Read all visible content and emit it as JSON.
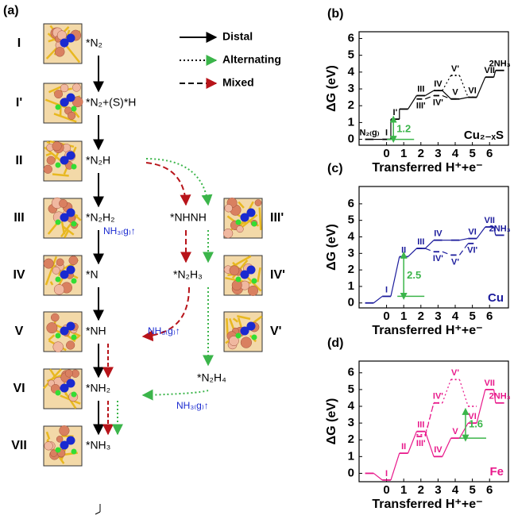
{
  "panel_a": {
    "label": "(a)",
    "legend": [
      {
        "name": "Distal",
        "style": "solid",
        "color": "#000000"
      },
      {
        "name": "Alternating",
        "style": "dotted",
        "color": "#3bb54a"
      },
      {
        "name": "Mixed",
        "style": "dashed",
        "color": "#b8141a"
      }
    ],
    "distal_steps": [
      {
        "state": "I",
        "species": "*N₂"
      },
      {
        "state": "I'",
        "species": "*N₂+(S)*H"
      },
      {
        "state": "II",
        "species": "*N₂H"
      },
      {
        "state": "III",
        "species": "*N₂H₂"
      },
      {
        "state": "IV",
        "species": "*N"
      },
      {
        "state": "V",
        "species": "*NH"
      },
      {
        "state": "VI",
        "species": "*NH₂"
      },
      {
        "state": "VII",
        "species": "*NH₃"
      }
    ],
    "branch_species": [
      "*NHNH",
      "*N₂H₃",
      "*N₂H₄"
    ],
    "side_states": [
      "III'",
      "IV'",
      "V'"
    ],
    "release": "NH₃₍g₎↑"
  },
  "chart_data": [
    {
      "type": "step",
      "panel": "(b)",
      "label": "Cu₂₋ₓS",
      "xlabel": "Transferred H⁺+e⁻",
      "ylabel": "ΔG (eV)",
      "color": "#000000",
      "xlim": [
        -1.6,
        7.1
      ],
      "ylim": [
        -0.35,
        6.4
      ],
      "xticks": [
        0,
        1,
        2,
        3,
        4,
        5,
        6
      ],
      "yticks": [
        0,
        1,
        2,
        3,
        4,
        5,
        6
      ],
      "series": [
        {
          "style": "solid",
          "x": [
            -1,
            0,
            0.5,
            1,
            2,
            3,
            4,
            5,
            6,
            6.6
          ],
          "values": [
            0,
            0,
            1.2,
            1.8,
            2.6,
            2.9,
            2.4,
            2.5,
            3.7,
            4.1
          ],
          "point_labels": [
            "N₂₍g₎",
            "I",
            "I'",
            null,
            "III",
            "IV",
            "V",
            "VI",
            "VII",
            "2NH₃"
          ]
        },
        {
          "style": "dotted",
          "x": [
            3,
            4,
            5
          ],
          "values": [
            2.9,
            3.8,
            2.5
          ],
          "point_labels": [
            null,
            "V'",
            null
          ]
        },
        {
          "style": "dashed",
          "x": [
            2,
            3,
            4
          ],
          "values": [
            2.4,
            2.6,
            2.4
          ],
          "point_labels": [
            "III'",
            "IV'",
            null
          ]
        }
      ],
      "gap": {
        "from": 0,
        "to": 1.2,
        "label": "1.2",
        "color": "#3bb54a"
      }
    },
    {
      "type": "step",
      "panel": "(c)",
      "label": "Cu",
      "xlabel": "Transferred H⁺+e⁻",
      "ylabel": "ΔG (eV)",
      "color": "#1c1c9c",
      "xlim": [
        -1.6,
        7.1
      ],
      "ylim": [
        -0.3,
        7.05
      ],
      "xticks": [
        0,
        1,
        2,
        3,
        4,
        5,
        6
      ],
      "yticks": [
        0,
        1,
        2,
        3,
        4,
        5,
        6
      ],
      "series": [
        {
          "style": "solid",
          "x": [
            -1,
            0,
            1,
            2,
            3,
            4,
            5,
            6,
            6.6
          ],
          "values": [
            0,
            0.4,
            2.8,
            3.3,
            3.8,
            3.8,
            3.9,
            4.6,
            4.1
          ],
          "point_labels": [
            null,
            "I",
            "II",
            "III",
            "IV",
            null,
            "VI",
            "VII",
            "2NH₃"
          ]
        },
        {
          "style": "dashed",
          "x": [
            2,
            3,
            4,
            5
          ],
          "values": [
            3.3,
            3.1,
            2.9,
            3.6
          ],
          "point_labels": [
            null,
            "IV'",
            "V'",
            "VI'"
          ]
        }
      ],
      "gap": {
        "from": 0.4,
        "to": 2.9,
        "label": "2.5",
        "color": "#3bb54a"
      }
    },
    {
      "type": "step",
      "panel": "(d)",
      "label": "Fe",
      "xlabel": "Transferred H⁺+e⁻",
      "ylabel": "ΔG (eV)",
      "color": "#e8198b",
      "xlim": [
        -1.6,
        7.1
      ],
      "ylim": [
        -0.5,
        6.7
      ],
      "xticks": [
        0,
        1,
        2,
        3,
        4,
        5,
        6
      ],
      "yticks": [
        0,
        1,
        2,
        3,
        4,
        5,
        6
      ],
      "series": [
        {
          "style": "solid",
          "x": [
            -1,
            0,
            1,
            2,
            3,
            4,
            5,
            6,
            6.6
          ],
          "values": [
            0,
            -0.4,
            1.2,
            2.5,
            1.0,
            2.1,
            3.0,
            5.0,
            4.2
          ],
          "point_labels": [
            null,
            "I",
            "II",
            "III",
            "IV",
            "V",
            "VI",
            "VII",
            "2NH₃"
          ]
        },
        {
          "style": "dotted",
          "x": [
            2,
            3,
            4,
            5
          ],
          "values": [
            2.3,
            4.2,
            5.6,
            4.0
          ],
          "point_labels": [
            null,
            "IV'",
            "V'",
            null
          ]
        },
        {
          "style": "dashed",
          "x": [
            2,
            3
          ],
          "values": [
            2.2,
            4.2
          ],
          "point_labels": [
            "III'",
            null
          ]
        }
      ],
      "gap": {
        "from": 2.1,
        "to": 3.7,
        "label": "1.6",
        "color": "#3bb54a"
      }
    }
  ]
}
